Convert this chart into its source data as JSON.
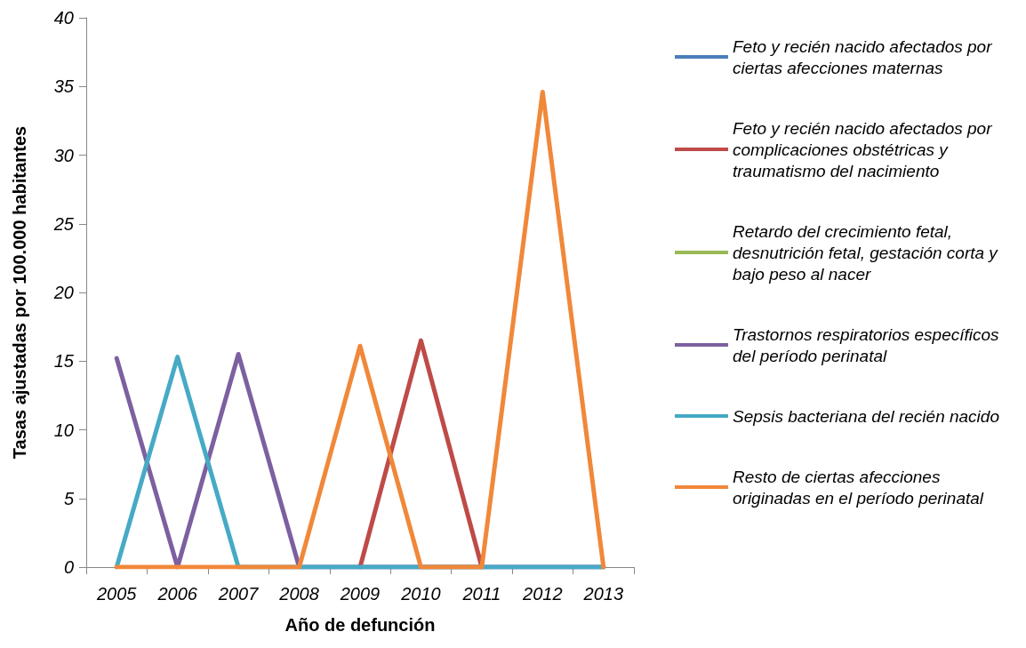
{
  "chart_data": {
    "type": "line",
    "xlabel": "Año de defunción",
    "ylabel": "Tasas ajustadas por 100.000 habitantes",
    "categories": [
      "2005",
      "2006",
      "2007",
      "2008",
      "2009",
      "2010",
      "2011",
      "2012",
      "2013"
    ],
    "ylim": [
      0,
      40
    ],
    "yticks": [
      0,
      5,
      10,
      15,
      20,
      25,
      30,
      35,
      40
    ],
    "grid": false,
    "legend": "right",
    "marker": "none",
    "line_style": "solid",
    "series": [
      {
        "name": "Feto y recién nacido afectados por ciertas afecciones maternas",
        "color": "#4a7ebb",
        "values": [
          null,
          null,
          null,
          null,
          null,
          null,
          null,
          null,
          null
        ]
      },
      {
        "name": "Feto y recién nacido afectados por complicaciones obstétricas y traumatismo del nacimiento",
        "color": "#be4b48",
        "values": [
          null,
          null,
          null,
          null,
          0,
          16.5,
          0,
          null,
          null
        ]
      },
      {
        "name": "Retardo del crecimiento fetal, desnutrición fetal, gestación corta y bajo peso al nacer",
        "color": "#98b954",
        "values": [
          null,
          null,
          null,
          null,
          null,
          null,
          null,
          null,
          null
        ]
      },
      {
        "name": "Trastornos respiratorios específicos del período perinatal",
        "color": "#7d60a0",
        "values": [
          15.2,
          0,
          15.5,
          0,
          0,
          0,
          0,
          0,
          0
        ]
      },
      {
        "name": "Sepsis bacteriana del recién nacido",
        "color": "#46aac5",
        "values": [
          0,
          15.3,
          0,
          0,
          0,
          0,
          0,
          0,
          0
        ]
      },
      {
        "name": "Resto de ciertas afecciones originadas en el período perinatal",
        "color": "#f0883a",
        "values": [
          0,
          0,
          0,
          0,
          16.1,
          0,
          0,
          34.6,
          0
        ]
      }
    ]
  }
}
